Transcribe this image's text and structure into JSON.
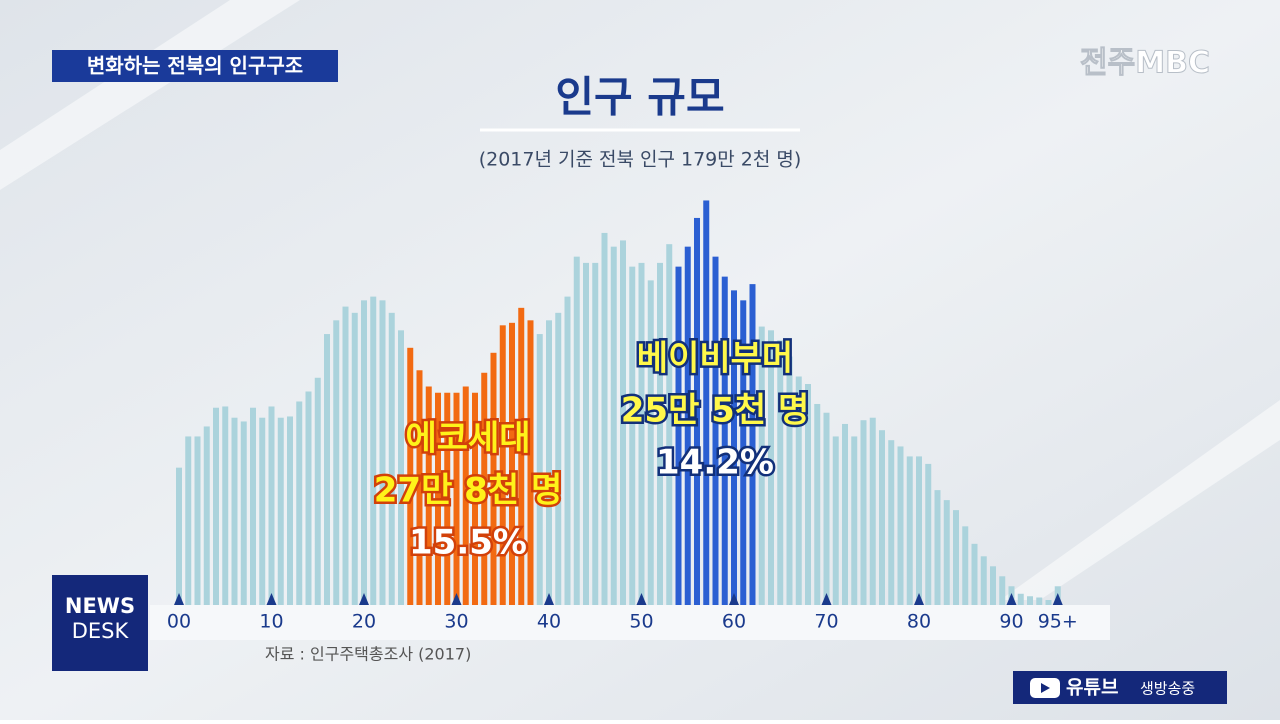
{
  "header": {
    "title": "변화하는 전북의 인구구조",
    "station": "전주MBC",
    "program": [
      "NEWS",
      "DESK"
    ],
    "live": "유튜브",
    "live_note": "생방송중"
  },
  "chart_data": {
    "type": "bar",
    "title": "인구 규모",
    "subtitle": "(2017년 기준 전북 인구 179만 2천 명)",
    "source": "자료 : 인구주택총조사 (2017)",
    "categories": [
      "00",
      null,
      null,
      null,
      null,
      null,
      null,
      null,
      null,
      null,
      "10",
      null,
      null,
      null,
      null,
      null,
      null,
      null,
      null,
      null,
      "20",
      null,
      null,
      null,
      null,
      null,
      null,
      null,
      null,
      null,
      "30",
      null,
      null,
      null,
      null,
      null,
      null,
      null,
      null,
      null,
      "40",
      null,
      null,
      null,
      null,
      null,
      null,
      null,
      null,
      null,
      "50",
      null,
      null,
      null,
      null,
      null,
      null,
      null,
      null,
      null,
      "60",
      null,
      null,
      null,
      null,
      null,
      null,
      null,
      null,
      null,
      "70",
      null,
      null,
      null,
      null,
      null,
      null,
      null,
      null,
      null,
      "80",
      null,
      null,
      null,
      null,
      null,
      null,
      null,
      null,
      null,
      "90",
      null,
      null,
      null,
      null,
      "95+"
    ],
    "values": [
      11.0,
      13.5,
      13.5,
      14.3,
      15.8,
      15.9,
      15.0,
      14.7,
      15.8,
      15.0,
      15.9,
      15.0,
      15.1,
      16.3,
      17.1,
      18.2,
      21.7,
      22.8,
      23.9,
      23.4,
      24.4,
      24.7,
      24.4,
      23.4,
      22.0,
      20.6,
      18.8,
      17.5,
      17.0,
      17.0,
      17.0,
      17.5,
      17.0,
      18.6,
      20.2,
      22.4,
      22.6,
      23.8,
      22.8,
      21.7,
      22.8,
      23.4,
      24.7,
      27.9,
      27.4,
      27.4,
      29.8,
      28.7,
      29.2,
      27.1,
      27.4,
      26.0,
      27.4,
      28.9,
      27.1,
      28.7,
      31.0,
      32.4,
      27.9,
      26.3,
      25.2,
      24.4,
      25.7,
      22.3,
      22.0,
      21.2,
      19.9,
      18.3,
      17.7,
      16.1,
      15.4,
      13.5,
      14.5,
      13.5,
      14.8,
      15.0,
      14.0,
      13.2,
      12.7,
      11.9,
      11.9,
      11.3,
      9.2,
      8.4,
      7.6,
      6.3,
      4.9,
      3.9,
      3.1,
      2.3,
      1.5,
      0.9,
      0.7,
      0.6,
      0.4,
      1.5
    ],
    "colors": [
      "#abd3dc",
      "#abd3dc",
      "#abd3dc",
      "#abd3dc",
      "#abd3dc",
      "#abd3dc",
      "#abd3dc",
      "#abd3dc",
      "#abd3dc",
      "#abd3dc",
      "#abd3dc",
      "#abd3dc",
      "#abd3dc",
      "#abd3dc",
      "#abd3dc",
      "#abd3dc",
      "#abd3dc",
      "#abd3dc",
      "#abd3dc",
      "#abd3dc",
      "#abd3dc",
      "#abd3dc",
      "#abd3dc",
      "#abd3dc",
      "#abd3dc",
      "#f26a12",
      "#f26a12",
      "#f26a12",
      "#f26a12",
      "#f26a12",
      "#f26a12",
      "#f26a12",
      "#f26a12",
      "#f26a12",
      "#f26a12",
      "#f26a12",
      "#f26a12",
      "#f26a12",
      "#f26a12",
      "#abd3dc",
      "#abd3dc",
      "#abd3dc",
      "#abd3dc",
      "#abd3dc",
      "#abd3dc",
      "#abd3dc",
      "#abd3dc",
      "#abd3dc",
      "#abd3dc",
      "#abd3dc",
      "#abd3dc",
      "#abd3dc",
      "#abd3dc",
      "#abd3dc",
      "#2b5fd2",
      "#2b5fd2",
      "#2b5fd2",
      "#2b5fd2",
      "#2b5fd2",
      "#2b5fd2",
      "#2b5fd2",
      "#2b5fd2",
      "#2b5fd2",
      "#abd3dc",
      "#abd3dc",
      "#abd3dc",
      "#abd3dc",
      "#abd3dc",
      "#abd3dc",
      "#abd3dc",
      "#abd3dc",
      "#abd3dc",
      "#abd3dc",
      "#abd3dc",
      "#abd3dc",
      "#abd3dc",
      "#abd3dc",
      "#abd3dc",
      "#abd3dc",
      "#abd3dc",
      "#abd3dc",
      "#abd3dc",
      "#abd3dc",
      "#abd3dc",
      "#abd3dc",
      "#abd3dc",
      "#abd3dc",
      "#abd3dc",
      "#abd3dc",
      "#abd3dc",
      "#abd3dc",
      "#abd3dc",
      "#abd3dc",
      "#abd3dc",
      "#abd3dc",
      "#abd3dc"
    ],
    "ylim": [
      0,
      35
    ],
    "annotations": [
      {
        "lines": [
          "에코세대",
          "27만 8천 명",
          "15.5%"
        ]
      },
      {
        "lines": [
          "베이비부머",
          "25만 5천 명",
          "14.2%"
        ]
      }
    ]
  }
}
